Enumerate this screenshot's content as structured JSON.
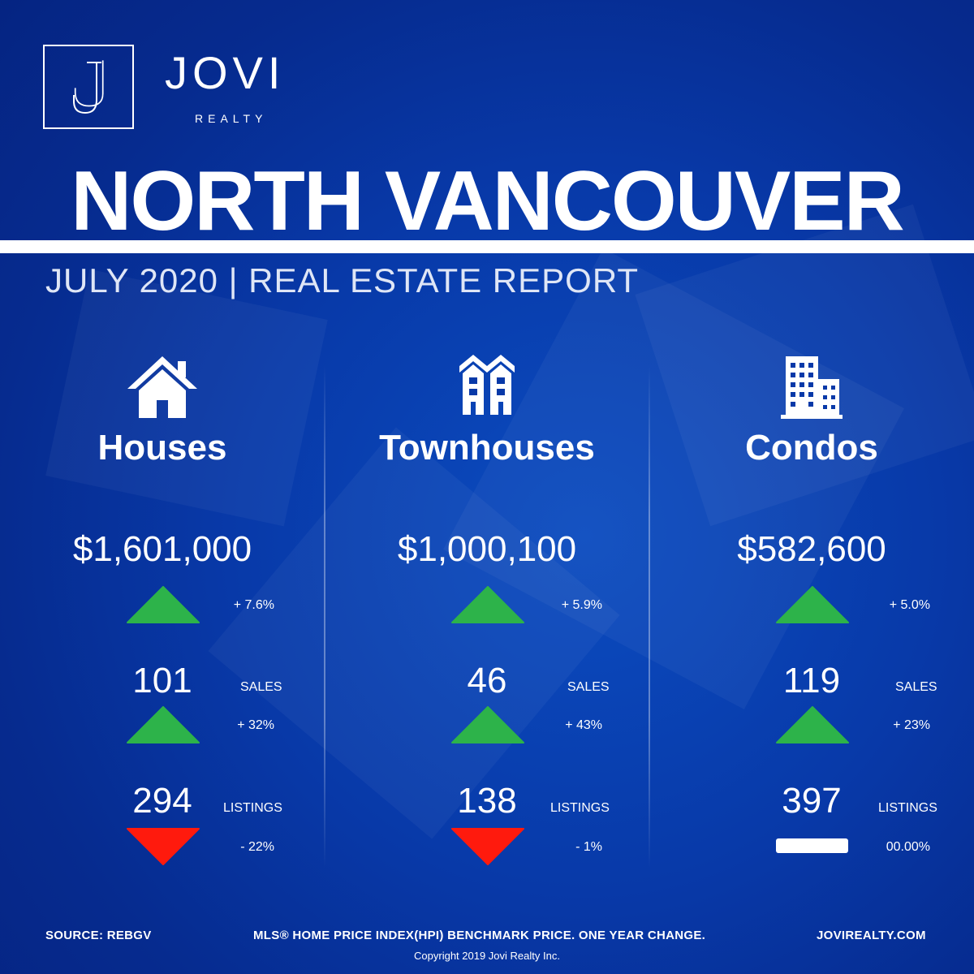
{
  "brand": {
    "name": "JOVI",
    "sub": "REALTY"
  },
  "title": "NORTH VANCOUVER",
  "subtitle": "JULY 2020 | REAL ESTATE REPORT",
  "colors": {
    "background": "#0839a8",
    "up": "#2db34a",
    "down": "#ff1a0d",
    "flat": "#ffffff",
    "text": "#ffffff"
  },
  "labels": {
    "sales": "SALES",
    "listings": "LISTINGS"
  },
  "columns": [
    {
      "icon": "house-icon",
      "name": "Houses",
      "price": "$1,601,000",
      "price_change": "+ 7.6%",
      "price_trend": "up",
      "sales": "101",
      "sales_change": "+ 32%",
      "sales_trend": "up",
      "listings": "294",
      "listings_change": "- 22%",
      "listings_trend": "down"
    },
    {
      "icon": "townhouse-icon",
      "name": "Townhouses",
      "price": "$1,000,100",
      "price_change": "+ 5.9%",
      "price_trend": "up",
      "sales": "46",
      "sales_change": "+ 43%",
      "sales_trend": "up",
      "listings": "138",
      "listings_change": "- 1%",
      "listings_trend": "down"
    },
    {
      "icon": "condo-building-icon",
      "name": "Condos",
      "price": "$582,600",
      "price_change": "+ 5.0%",
      "price_trend": "up",
      "sales": "119",
      "sales_change": "+ 23%",
      "sales_trend": "up",
      "listings": "397",
      "listings_change": "00.00%",
      "listings_trend": "flat"
    }
  ],
  "footer": {
    "source": "SOURCE:  REBGV",
    "note": "MLS® HOME PRICE INDEX(HPI) BENCHMARK PRICE. ONE YEAR CHANGE.",
    "website": "JOVIREALTY.COM",
    "copyright": "Copyright 2019 Jovi Realty Inc."
  }
}
